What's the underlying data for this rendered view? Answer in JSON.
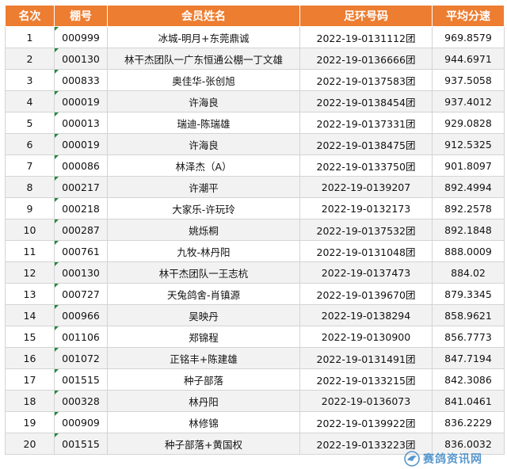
{
  "table": {
    "headers": {
      "rank": "名次",
      "loft_no": "棚号",
      "member_name": "会员姓名",
      "ring_no": "足环号码",
      "speed": "平均分速"
    },
    "rows": [
      {
        "rank": "1",
        "loft_no": "000999",
        "member_name": "冰城-明月+东莞鼎诚",
        "ring_no": "2022-19-0131112团",
        "speed": "969.8579"
      },
      {
        "rank": "2",
        "loft_no": "000130",
        "member_name": "林干杰团队一广东恒通公棚一丁文雄",
        "ring_no": "2022-19-0136666团",
        "speed": "944.6971"
      },
      {
        "rank": "3",
        "loft_no": "000833",
        "member_name": "奥佳华-张创旭",
        "ring_no": "2022-19-0137583团",
        "speed": "937.5058"
      },
      {
        "rank": "4",
        "loft_no": "000019",
        "member_name": "许海良",
        "ring_no": "2022-19-0138454团",
        "speed": "937.4012"
      },
      {
        "rank": "5",
        "loft_no": "000013",
        "member_name": "瑞迪-陈瑞雄",
        "ring_no": "2022-19-0137331团",
        "speed": "929.0828"
      },
      {
        "rank": "6",
        "loft_no": "000019",
        "member_name": "许海良",
        "ring_no": "2022-19-0138475团",
        "speed": "912.5325"
      },
      {
        "rank": "7",
        "loft_no": "000086",
        "member_name": "林泽杰（A）",
        "ring_no": "2022-19-0133750团",
        "speed": "901.8097"
      },
      {
        "rank": "8",
        "loft_no": "000217",
        "member_name": "许潮平",
        "ring_no": "2022-19-0139207",
        "speed": "892.4994"
      },
      {
        "rank": "9",
        "loft_no": "000218",
        "member_name": "大家乐-许玩玲",
        "ring_no": "2022-19-0132173",
        "speed": "892.2578"
      },
      {
        "rank": "10",
        "loft_no": "000287",
        "member_name": "姚烁桐",
        "ring_no": "2022-19-0137532团",
        "speed": "892.1848"
      },
      {
        "rank": "11",
        "loft_no": "000761",
        "member_name": "九牧-林丹阳",
        "ring_no": "2022-19-0131048团",
        "speed": "888.0009"
      },
      {
        "rank": "12",
        "loft_no": "000130",
        "member_name": "林干杰团队一王志杭",
        "ring_no": "2022-19-0137473",
        "speed": "884.02"
      },
      {
        "rank": "13",
        "loft_no": "000727",
        "member_name": "天兔鸽舍-肖镇源",
        "ring_no": "2022-19-0139670团",
        "speed": "879.3345"
      },
      {
        "rank": "14",
        "loft_no": "000966",
        "member_name": "吴映丹",
        "ring_no": "2022-19-0138294",
        "speed": "858.9621"
      },
      {
        "rank": "15",
        "loft_no": "001106",
        "member_name": "郑锦程",
        "ring_no": "2022-19-0130900",
        "speed": "856.7773"
      },
      {
        "rank": "16",
        "loft_no": "001072",
        "member_name": "正铭丰+陈建雄",
        "ring_no": "2022-19-0131491团",
        "speed": "847.7194"
      },
      {
        "rank": "17",
        "loft_no": "001515",
        "member_name": "种子部落",
        "ring_no": "2022-19-0133215团",
        "speed": "842.3086"
      },
      {
        "rank": "18",
        "loft_no": "000328",
        "member_name": "林丹阳",
        "ring_no": "2022-19-0136073",
        "speed": "841.0461"
      },
      {
        "rank": "19",
        "loft_no": "000909",
        "member_name": "林修锦",
        "ring_no": "2022-19-0139922团",
        "speed": "836.2229"
      },
      {
        "rank": "20",
        "loft_no": "001515",
        "member_name": "种子部落+黄国权",
        "ring_no": "2022-19-0133223团",
        "speed": "836.0032"
      }
    ]
  },
  "watermark": {
    "text": "赛鸽资讯网",
    "color": "#2a7bbf"
  },
  "colors": {
    "header_bg": "#ed7d31",
    "header_text": "#ffffff",
    "stripe_bg": "#f2f2f2",
    "grid_line": "#d4d4d4",
    "cell_marker": "#1e8a3a"
  }
}
